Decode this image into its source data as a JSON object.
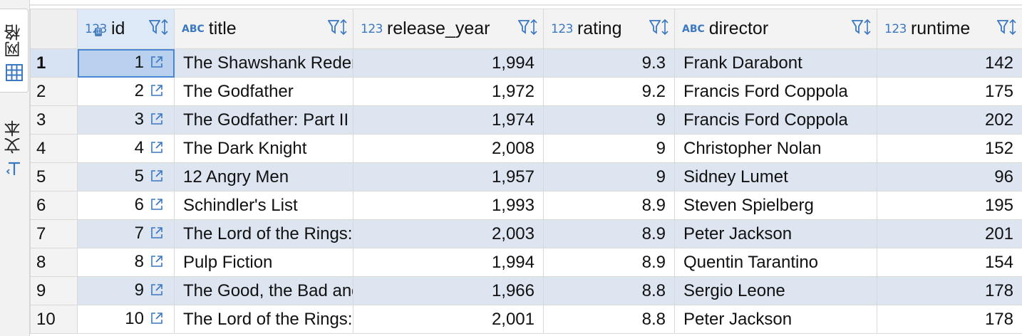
{
  "side_tabs": {
    "grid_label": "网格",
    "text_label": "文本"
  },
  "columns": [
    {
      "key": "id",
      "type": "123",
      "name": "id"
    },
    {
      "key": "title",
      "type": "ABC",
      "name": "title"
    },
    {
      "key": "release_year",
      "type": "123",
      "name": "release_year"
    },
    {
      "key": "rating",
      "type": "123",
      "name": "rating"
    },
    {
      "key": "director",
      "type": "ABC",
      "name": "director"
    },
    {
      "key": "runtime",
      "type": "123",
      "name": "runtime"
    }
  ],
  "rows": [
    {
      "num": "1",
      "id": "1",
      "title": "The Shawshank Redemption",
      "release_year": "1,994",
      "rating": "9.3",
      "director": "Frank Darabont",
      "runtime": "142"
    },
    {
      "num": "2",
      "id": "2",
      "title": "The Godfather",
      "release_year": "1,972",
      "rating": "9.2",
      "director": "Francis Ford Coppola",
      "runtime": "175"
    },
    {
      "num": "3",
      "id": "3",
      "title": "The Godfather: Part II",
      "release_year": "1,974",
      "rating": "9",
      "director": "Francis Ford Coppola",
      "runtime": "202"
    },
    {
      "num": "4",
      "id": "4",
      "title": "The Dark Knight",
      "release_year": "2,008",
      "rating": "9",
      "director": "Christopher Nolan",
      "runtime": "152"
    },
    {
      "num": "5",
      "id": "5",
      "title": "12 Angry Men",
      "release_year": "1,957",
      "rating": "9",
      "director": "Sidney Lumet",
      "runtime": "96"
    },
    {
      "num": "6",
      "id": "6",
      "title": "Schindler's List",
      "release_year": "1,993",
      "rating": "8.9",
      "director": "Steven Spielberg",
      "runtime": "195"
    },
    {
      "num": "7",
      "id": "7",
      "title": "The Lord of the Rings: The Return of the King",
      "release_year": "2,003",
      "rating": "8.9",
      "director": "Peter Jackson",
      "runtime": "201"
    },
    {
      "num": "8",
      "id": "8",
      "title": "Pulp Fiction",
      "release_year": "1,994",
      "rating": "8.9",
      "director": "Quentin Tarantino",
      "runtime": "154"
    },
    {
      "num": "9",
      "id": "9",
      "title": "The Good, the Bad and the Ugly",
      "release_year": "1,966",
      "rating": "8.8",
      "director": "Sergio Leone",
      "runtime": "178"
    },
    {
      "num": "10",
      "id": "10",
      "title": "The Lord of the Rings: The Fellowship of the Ring",
      "release_year": "2,001",
      "rating": "8.8",
      "director": "Peter Jackson",
      "runtime": "178"
    }
  ],
  "selection": {
    "row": 0,
    "column": "id"
  },
  "icons": {
    "filter": "filter-icon",
    "sort": "sort-icon",
    "open_link": "open-link-icon",
    "grid": "grid-icon",
    "text": "text-icon",
    "primary_key": "key-icon"
  },
  "colors": {
    "accent": "#3a78c2",
    "row_stripe": "#dde5f0",
    "selected_cell": "#b9d1ee"
  }
}
